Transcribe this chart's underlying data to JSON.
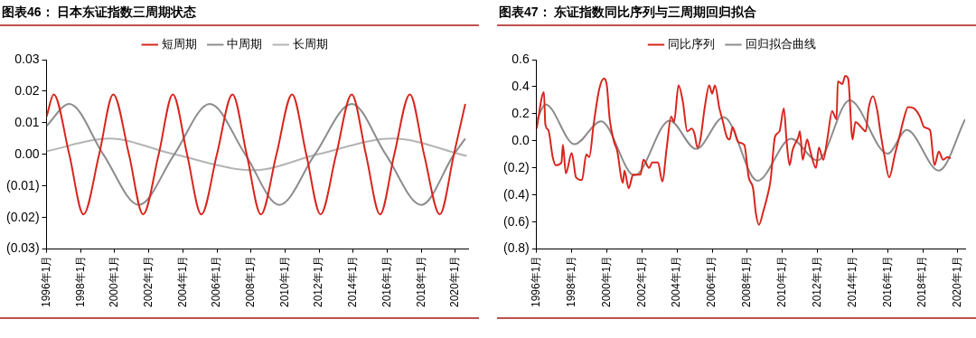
{
  "chart_data": [
    {
      "type": "line",
      "title": "图表46：  日本东证指数三周期状态",
      "legend": "top",
      "grid": false,
      "marker": "none",
      "line_style": "solid",
      "xlim": [
        "1996-01",
        "2020-10"
      ],
      "xticks": [
        {
          "value": "1996-01",
          "label": "1996年1月"
        },
        {
          "value": "1998-01",
          "label": "1998年1月"
        },
        {
          "value": "2000-01",
          "label": "2000年1月"
        },
        {
          "value": "2002-01",
          "label": "2002年1月"
        },
        {
          "value": "2004-01",
          "label": "2004年1月"
        },
        {
          "value": "2006-01",
          "label": "2006年1月"
        },
        {
          "value": "2008-01",
          "label": "2008年1月"
        },
        {
          "value": "2010-01",
          "label": "2010年1月"
        },
        {
          "value": "2012-01",
          "label": "2012年1月"
        },
        {
          "value": "2014-01",
          "label": "2014年1月"
        },
        {
          "value": "2016-01",
          "label": "2016年1月"
        },
        {
          "value": "2018-01",
          "label": "2018年1月"
        },
        {
          "value": "2020-01",
          "label": "2020年1月"
        }
      ],
      "ylim": [
        -0.03,
        0.03
      ],
      "yticks": [
        {
          "value": -0.03,
          "label": "(0.03)"
        },
        {
          "value": -0.02,
          "label": "(0.02)"
        },
        {
          "value": -0.01,
          "label": "(0.01)"
        },
        {
          "value": 0,
          "label": "0.00"
        },
        0.01,
        0.02,
        0.03
      ],
      "series": [
        {
          "name": "短周期",
          "color": "#d7261e",
          "x": [
            "1996-01",
            "1996-06",
            "1997-05",
            "1998-03",
            "1999-02",
            "1999-12",
            "2000-11",
            "2001-09",
            "2002-08",
            "2003-06",
            "2004-04",
            "2005-02",
            "2006-01",
            "2006-12",
            "2007-10",
            "2008-08",
            "2009-07",
            "2010-06",
            "2011-04",
            "2012-02",
            "2013-01",
            "2013-12",
            "2014-10",
            "2015-08",
            "2016-06",
            "2017-05",
            "2018-03",
            "2019-02",
            "2019-12",
            "2020-08"
          ],
          "values": [
            0.012,
            0.019,
            0,
            -0.019,
            0,
            0.019,
            0,
            -0.019,
            0,
            0.019,
            0,
            -0.019,
            0,
            0.019,
            0,
            -0.019,
            0,
            0.019,
            0,
            -0.019,
            0,
            0.019,
            0,
            -0.019,
            0,
            0.019,
            0,
            -0.019,
            0,
            0.016
          ]
        },
        {
          "name": "中周期",
          "color": "#8c8c8c",
          "x": [
            "1996-01",
            "1997-05",
            "1999-05",
            "2001-06",
            "2003-07",
            "2005-08",
            "2007-09",
            "2009-09",
            "2011-10",
            "2013-12",
            "2015-12",
            "2018-01",
            "2019-12",
            "2020-08"
          ],
          "values": [
            0.009,
            0.016,
            0,
            -0.016,
            0,
            0.016,
            0,
            -0.016,
            0,
            0.016,
            0,
            -0.016,
            0,
            0.005
          ]
        },
        {
          "name": "长周期",
          "color": "#b4b4b4",
          "x": [
            "1996-01",
            "1999-09",
            "2003-07",
            "2008-03",
            "2011-12",
            "2016-05",
            "2020-09"
          ],
          "values": [
            0.001,
            0.005,
            0,
            -0.005,
            0,
            0.005,
            -0.0005
          ]
        }
      ]
    },
    {
      "type": "line",
      "title": "图表47：  东证指数同比序列与三周期回归拟合",
      "legend": "top",
      "grid": false,
      "marker": "none",
      "line_style": "solid",
      "xlim": [
        "1996-01",
        "2020-06"
      ],
      "xticks": [
        {
          "value": "1996-01",
          "label": "1996年1月"
        },
        {
          "value": "1998-01",
          "label": "1998年1月"
        },
        {
          "value": "2000-01",
          "label": "2000年1月"
        },
        {
          "value": "2002-01",
          "label": "2002年1月"
        },
        {
          "value": "2004-01",
          "label": "2004年1月"
        },
        {
          "value": "2006-01",
          "label": "2006年1月"
        },
        {
          "value": "2008-01",
          "label": "2008年1月"
        },
        {
          "value": "2010-01",
          "label": "2010年1月"
        },
        {
          "value": "2012-01",
          "label": "2012年1月"
        },
        {
          "value": "2014-01",
          "label": "2014年1月"
        },
        {
          "value": "2016-01",
          "label": "2016年1月"
        },
        {
          "value": "2018-01",
          "label": "2018年1月"
        },
        {
          "value": "2020-01",
          "label": "2020年1月"
        }
      ],
      "ylim": [
        -0.8,
        0.6
      ],
      "yticks": [
        {
          "value": -0.8,
          "label": "(0.8)"
        },
        {
          "value": -0.6,
          "label": "(0.6)"
        },
        {
          "value": -0.4,
          "label": "(0.4)"
        },
        {
          "value": -0.2,
          "label": "(0.2)"
        },
        {
          "value": 0,
          "label": "0.0"
        },
        0.2,
        0.4,
        0.6
      ],
      "series": [
        {
          "name": "同比序列",
          "color": "#d7261e",
          "x": [
            "1996-01",
            "1996-06",
            "1996-07",
            "1996-09",
            "1996-12",
            "1997-02",
            "1997-06",
            "1997-07",
            "1997-09",
            "1998-01",
            "1998-04",
            "1998-08",
            "1998-11",
            "1999-01",
            "1999-04",
            "1999-08",
            "1999-11",
            "2000-01",
            "2000-03",
            "2000-06",
            "2000-08",
            "2000-12",
            "2001-01",
            "2001-04",
            "2001-07",
            "2001-12",
            "2002-02",
            "2002-06",
            "2002-08",
            "2002-12",
            "2003-03",
            "2003-06",
            "2003-09",
            "2003-11",
            "2004-02",
            "2004-05",
            "2004-08",
            "2004-11",
            "2005-01",
            "2005-03",
            "2005-05",
            "2005-08",
            "2005-11",
            "2006-01",
            "2006-03",
            "2006-06",
            "2006-08",
            "2006-11",
            "2007-01",
            "2007-03",
            "2007-07",
            "2007-11",
            "2008-02",
            "2008-05",
            "2008-07",
            "2008-09",
            "2008-12",
            "2009-02",
            "2009-05",
            "2009-08",
            "2009-11",
            "2010-02",
            "2010-04",
            "2010-06",
            "2010-08",
            "2010-12",
            "2011-01",
            "2011-03",
            "2011-06",
            "2011-08",
            "2011-12",
            "2012-02",
            "2012-05",
            "2012-08",
            "2012-11",
            "2013-02",
            "2013-03",
            "2013-06",
            "2013-08",
            "2013-10",
            "2014-01",
            "2014-03",
            "2014-07",
            "2014-10",
            "2014-12",
            "2015-03",
            "2015-06",
            "2015-08",
            "2015-11",
            "2016-02",
            "2016-06",
            "2016-09",
            "2016-12",
            "2017-03",
            "2017-07",
            "2017-11",
            "2018-02",
            "2018-06",
            "2018-09",
            "2018-12",
            "2019-03",
            "2019-06",
            "2019-08"
          ],
          "values": [
            0.09,
            0.36,
            0.12,
            0.08,
            -0.12,
            -0.18,
            -0.16,
            -0.03,
            -0.24,
            -0.09,
            -0.27,
            -0.29,
            -0.1,
            -0.12,
            0.12,
            0.39,
            0.46,
            0.41,
            0.16,
            -0.01,
            -0.07,
            -0.31,
            -0.22,
            -0.35,
            -0.25,
            -0.25,
            -0.14,
            -0.2,
            -0.16,
            -0.16,
            -0.3,
            -0.05,
            0.18,
            0.14,
            0.41,
            0.29,
            0.07,
            0.09,
            0.05,
            -0.05,
            0.01,
            0.25,
            0.41,
            0.35,
            0.41,
            0.24,
            0.16,
            0.03,
            0.01,
            0.1,
            -0.01,
            -0.03,
            -0.27,
            -0.35,
            -0.54,
            -0.62,
            -0.52,
            -0.44,
            -0.29,
            0.03,
            0.07,
            0.24,
            -0.01,
            -0.18,
            -0.07,
            0.03,
            0.07,
            -0.14,
            0.01,
            -0.07,
            -0.2,
            -0.05,
            -0.14,
            0.03,
            0.22,
            0.16,
            0.44,
            0.42,
            0.48,
            0.46,
            0.01,
            0.14,
            0.1,
            0.07,
            0.24,
            0.33,
            0.22,
            0.07,
            -0.12,
            -0.27,
            -0.1,
            0.03,
            0.16,
            0.25,
            0.24,
            0.18,
            0.1,
            0.08,
            -0.18,
            -0.08,
            -0.14,
            -0.12,
            -0.13
          ]
        },
        {
          "name": "回归拟合曲线",
          "color": "#8c8c8c",
          "x": [
            "1996-01",
            "1996-07",
            "1998-03",
            "1999-09",
            "2001-08",
            "2003-08",
            "2005-02",
            "2006-09",
            "2008-08",
            "2010-07",
            "2012-01",
            "2013-11",
            "2016-01",
            "2017-02",
            "2018-12",
            "2020-06"
          ],
          "values": [
            0.15,
            0.27,
            -0.025,
            0.145,
            -0.255,
            0.15,
            -0.06,
            0.175,
            -0.295,
            0.015,
            -0.145,
            0.3,
            -0.095,
            0.08,
            -0.22,
            0.16
          ]
        }
      ]
    }
  ]
}
